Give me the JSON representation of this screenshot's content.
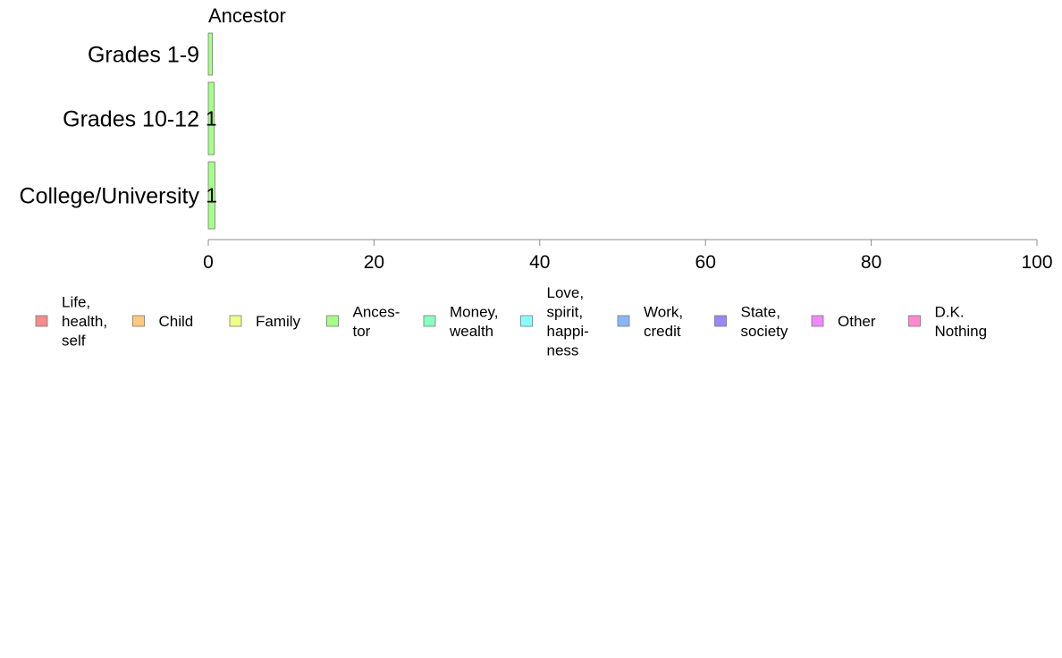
{
  "chart_data": {
    "type": "bar",
    "orientation": "horizontal",
    "stacked": true,
    "title": "Ancestor",
    "categories": [
      "Grades 1-9",
      "Grades 10-12",
      "College/University"
    ],
    "series": [
      {
        "name": "Ancestor",
        "color": "#a5ff88",
        "values": [
          0.5,
          0.7,
          0.8
        ],
        "data_labels": [
          "",
          "1",
          "1"
        ]
      }
    ],
    "xlim": [
      0,
      100
    ],
    "x_ticks": [
      0,
      20,
      40,
      60,
      80,
      100
    ],
    "grid": false,
    "legend_position": "bottom",
    "legend": [
      {
        "lines": [
          "Life,",
          "health,",
          "self"
        ],
        "color": "#f88a8a"
      },
      {
        "lines": [
          "Child"
        ],
        "color": "#ffc87f"
      },
      {
        "lines": [
          "Family"
        ],
        "color": "#efff88"
      },
      {
        "lines": [
          "Ances-",
          "tor"
        ],
        "color": "#a5ff88"
      },
      {
        "lines": [
          "Money,",
          "wealth"
        ],
        "color": "#88ffbd"
      },
      {
        "lines": [
          "Love,",
          "spirit,",
          "happi-",
          "ness"
        ],
        "color": "#88ffff"
      },
      {
        "lines": [
          "Work,",
          "credit"
        ],
        "color": "#88b6ff"
      },
      {
        "lines": [
          "State,",
          "society"
        ],
        "color": "#9988f7"
      },
      {
        "lines": [
          "Other"
        ],
        "color": "#f088ff"
      },
      {
        "lines": [
          "D.K.",
          "Nothing"
        ],
        "color": "#ff88d0"
      }
    ]
  }
}
